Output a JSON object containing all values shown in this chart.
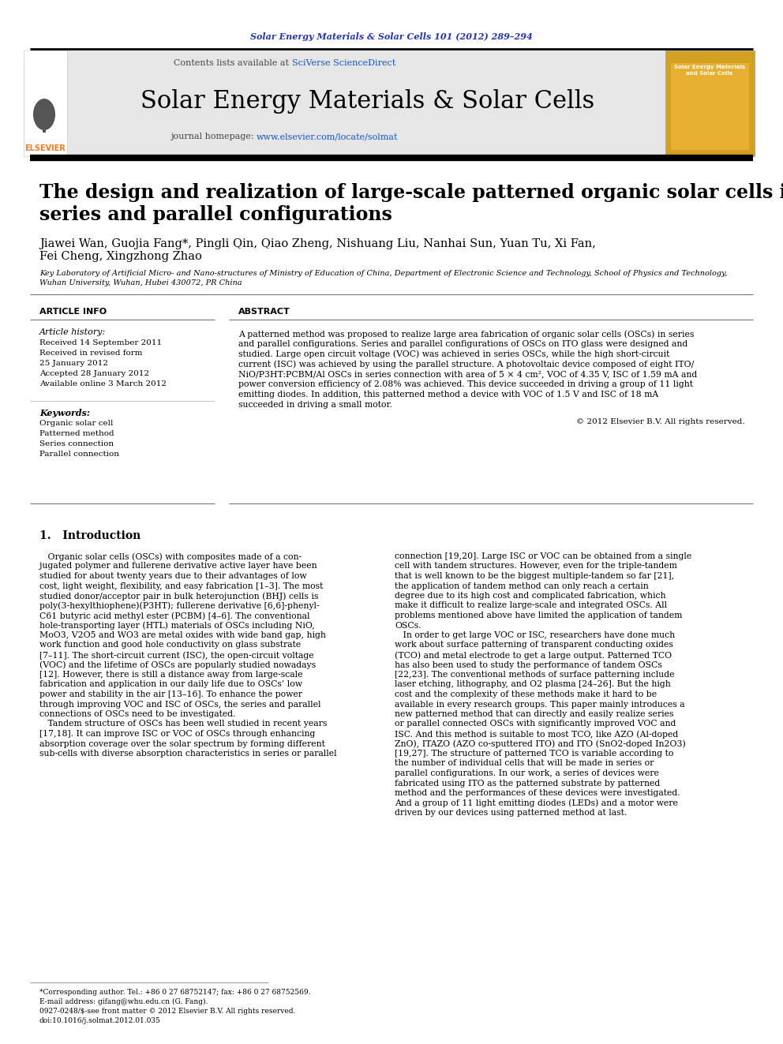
{
  "journal_citation": "Solar Energy Materials & Solar Cells 101 (2012) 289–294",
  "journal_name": "Solar Energy Materials & Solar Cells",
  "contents_line_plain": "Contents lists available at ",
  "contents_line_link": "SciVerse ScienceDirect",
  "journal_url_plain": "journal homepage: ",
  "journal_url_link": "www.elsevier.com/locate/solmat",
  "paper_title_line1": "The design and realization of large-scale patterned organic solar cells in",
  "paper_title_line2": "series and parallel configurations",
  "authors_line1": "Jiawei Wan, Guojia Fang*, Pingli Qin, Qiao Zheng, Nishuang Liu, Nanhai Sun, Yuan Tu, Xi Fan,",
  "authors_line2": "Fei Cheng, Xingzhong Zhao",
  "affiliation_line1": "Key Laboratory of Artificial Micro- and Nano-structures of Ministry of Education of China, Department of Electronic Science and Technology, School of Physics and Technology,",
  "affiliation_line2": "Wuhan University, Wuhan, Hubei 430072, PR China",
  "article_info_title": "ARTICLE INFO",
  "article_history_title": "Article history:",
  "received": "Received 14 September 2011",
  "received_revised": "Received in revised form",
  "revised_date": "25 January 2012",
  "accepted": "Accepted 28 January 2012",
  "available": "Available online 3 March 2012",
  "keywords_title": "Keywords:",
  "keywords": [
    "Organic solar cell",
    "Patterned method",
    "Series connection",
    "Parallel connection"
  ],
  "abstract_title": "ABSTRACT",
  "abstract_lines": [
    "A patterned method was proposed to realize large area fabrication of organic solar cells (OSCs) in series",
    "and parallel configurations. Series and parallel configurations of OSCs on ITO glass were designed and",
    "studied. Large open circuit voltage (VOC) was achieved in series OSCs, while the high short-circuit",
    "current (ISC) was achieved by using the parallel structure. A photovoltaic device composed of eight ITO/",
    "NiO/P3HT:PCBM/Al OSCs in series connection with area of 5 × 4 cm², VOC of 4.35 V, ISC of 1.59 mA and",
    "power conversion efficiency of 2.08% was achieved. This device succeeded in driving a group of 11 light",
    "emitting diodes. In addition, this patterned method a device with VOC of 1.5 V and ISC of 18 mA",
    "succeeded in driving a small motor."
  ],
  "copyright": "© 2012 Elsevier B.V. All rights reserved.",
  "section1_title": "1.   Introduction",
  "intro_col1_lines": [
    "   Organic solar cells (OSCs) with composites made of a con-",
    "jugated polymer and fullerene derivative active layer have been",
    "studied for about twenty years due to their advantages of low",
    "cost, light weight, flexibility, and easy fabrication [1–3]. The most",
    "studied donor/acceptor pair in bulk heterojunction (BHJ) cells is",
    "poly(3-hexylthiophene)(P3HT); fullerene derivative [6,6]-phenyl-",
    "C61 butyric acid methyl ester (PCBM) [4–6]. The conventional",
    "hole-transporting layer (HTL) materials of OSCs including NiO,",
    "MoO3, V2O5 and WO3 are metal oxides with wide band gap, high",
    "work function and good hole conductivity on glass substrate",
    "[7–11]. The short-circuit current (ISC), the open-circuit voltage",
    "(VOC) and the lifetime of OSCs are popularly studied nowadays",
    "[12]. However, there is still a distance away from large-scale",
    "fabrication and application in our daily life due to OSCs’ low",
    "power and stability in the air [13–16]. To enhance the power",
    "through improving VOC and ISC of OSCs, the series and parallel",
    "connections of OSCs need to be investigated.",
    "   Tandem structure of OSCs has been well studied in recent years",
    "[17,18]. It can improve ISC or VOC of OSCs through enhancing",
    "absorption coverage over the solar spectrum by forming different",
    "sub-cells with diverse absorption characteristics in series or parallel"
  ],
  "intro_col2_lines": [
    "connection [19,20]. Large ISC or VOC can be obtained from a single",
    "cell with tandem structures. However, even for the triple-tandem",
    "that is well known to be the biggest multiple-tandem so far [21],",
    "the application of tandem method can only reach a certain",
    "degree due to its high cost and complicated fabrication, which",
    "make it difficult to realize large-scale and integrated OSCs. All",
    "problems mentioned above have limited the application of tandem",
    "OSCs.",
    "   In order to get large VOC or ISC, researchers have done much",
    "work about surface patterning of transparent conducting oxides",
    "(TCO) and metal electrode to get a large output. Patterned TCO",
    "has also been used to study the performance of tandem OSCs",
    "[22,23]. The conventional methods of surface patterning include",
    "laser etching, lithography, and O2 plasma [24–26]. But the high",
    "cost and the complexity of these methods make it hard to be",
    "available in every research groups. This paper mainly introduces a",
    "new patterned method that can directly and easily realize series",
    "or parallel connected OSCs with significantly improved VOC and",
    "ISC. And this method is suitable to most TCO, like AZO (Al-doped",
    "ZnO), ITAZO (AZO co-sputtered ITO) and ITO (SnO2-doped In2O3)",
    "[19,27]. The structure of patterned TCO is variable according to",
    "the number of individual cells that will be made in series or",
    "parallel configurations. In our work, a series of devices were",
    "fabricated using ITO as the patterned substrate by patterned",
    "method and the performances of these devices were investigated.",
    "And a group of 11 light emitting diodes (LEDs) and a motor were",
    "driven by our devices using patterned method at last."
  ],
  "footnote1": "*Corresponding author. Tel.: +86 0 27 68752147; fax: +86 0 27 68752569.",
  "footnote2": "E-mail address: gifang@whu.edu.cn (G. Fang).",
  "footnote3": "0927-0248/$-see front matter © 2012 Elsevier B.V. All rights reserved.",
  "footnote4": "doi:10.1016/j.solmat.2012.01.035",
  "bg_color": "#ffffff",
  "header_bg": "#e6e6e6",
  "journal_color": "#2233bb",
  "link_color": "#1155cc",
  "elsevier_orange": "#f47920"
}
